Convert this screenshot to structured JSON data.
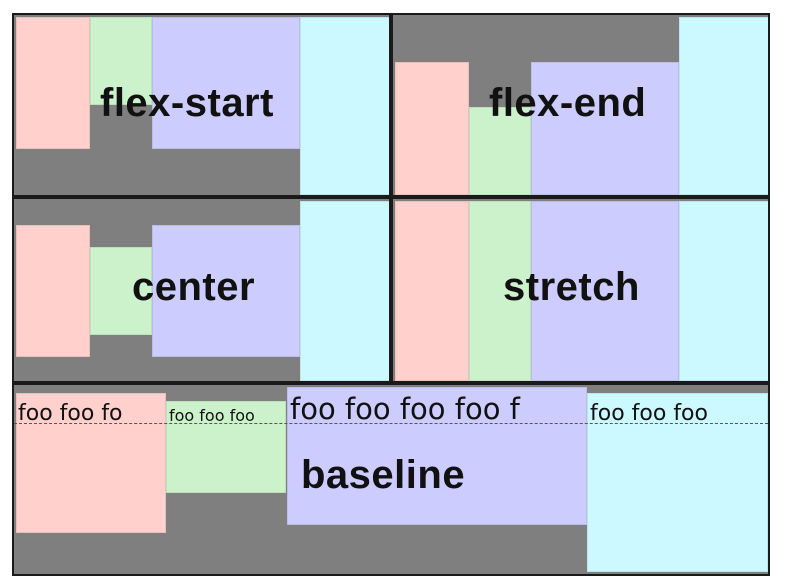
{
  "panels": {
    "flex_start": {
      "label": "flex-start"
    },
    "flex_end": {
      "label": "flex-end"
    },
    "center": {
      "label": "center"
    },
    "stretch": {
      "label": "stretch"
    },
    "baseline": {
      "label": "baseline",
      "texts": {
        "pink": "foo foo fo",
        "green": "foo foo foo",
        "lavender": "foo foo foo foo f",
        "cyan": "foo foo foo"
      }
    }
  },
  "colors": {
    "container": "#7f7f7f",
    "border": "#1a1a1a",
    "pink": "#ffd0cc",
    "green": "#ccf2cc",
    "lavender": "#ccccff",
    "cyan": "#ccf8ff"
  }
}
